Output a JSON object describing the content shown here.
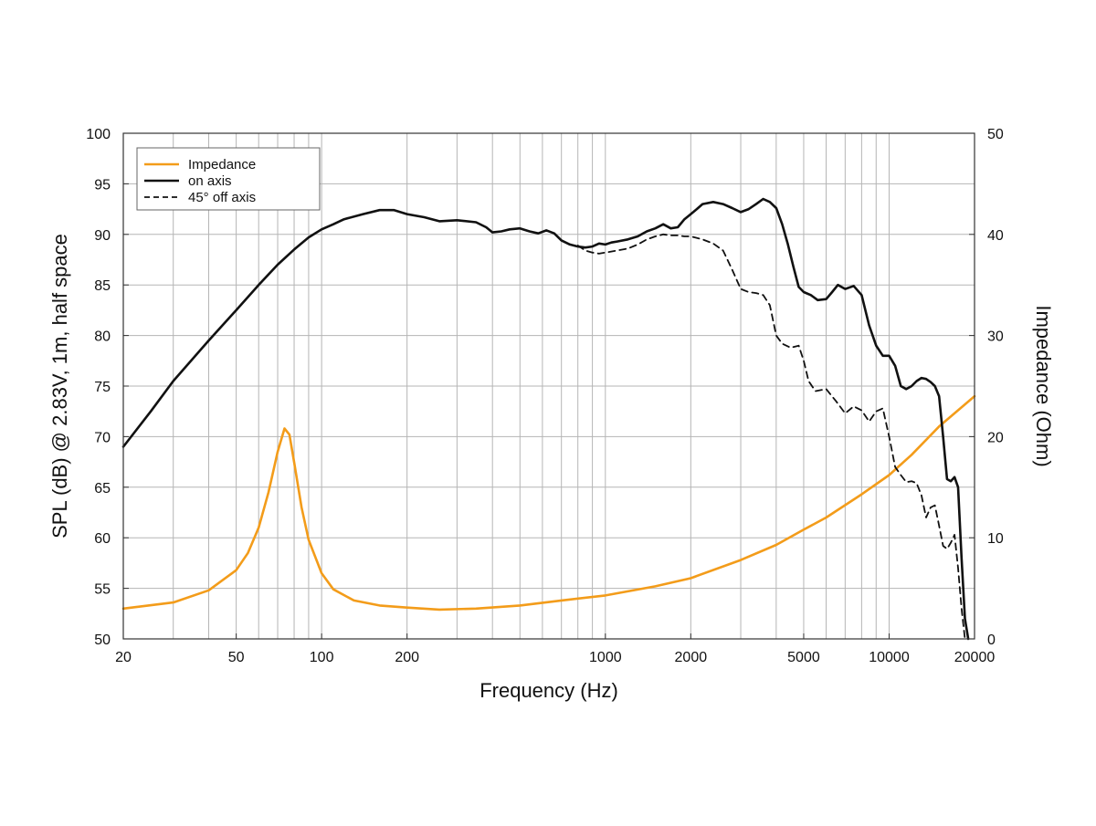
{
  "chart_data": {
    "type": "line",
    "x_scale": "log",
    "xlabel": "Frequency (Hz)",
    "ylabel_left": "SPL (dB) @ 2.83V, 1m, half space",
    "ylabel_right": "Impedance (Ohm)",
    "xlim": [
      20,
      20000
    ],
    "ylim_left": [
      50,
      100
    ],
    "ylim_right": [
      0,
      50
    ],
    "x_ticks": [
      20,
      50,
      100,
      200,
      1000,
      2000,
      5000,
      10000,
      20000
    ],
    "x_tick_labels": [
      "20",
      "50",
      "100",
      "200",
      "1000",
      "2000",
      "5000",
      "10000",
      "20000"
    ],
    "y_left_ticks": [
      50,
      55,
      60,
      65,
      70,
      75,
      80,
      85,
      90,
      95,
      100
    ],
    "y_left_tick_labels": [
      "50",
      "55",
      "60",
      "65",
      "70",
      "75",
      "80",
      "85",
      "90",
      "95",
      "100"
    ],
    "y_right_ticks": [
      0,
      10,
      20,
      30,
      40,
      50
    ],
    "y_right_tick_labels": [
      "0",
      "10",
      "20",
      "30",
      "40",
      "50"
    ],
    "grid": true,
    "legend_position": "top-left",
    "legend": [
      {
        "label": "Impedance",
        "color": "#f39c1a",
        "style": "solid"
      },
      {
        "label": "on axis",
        "color": "#111111",
        "style": "solid"
      },
      {
        "label": "45° off axis",
        "color": "#111111",
        "style": "dashed"
      }
    ],
    "series": [
      {
        "name": "Impedance",
        "axis": "right",
        "color": "#f39c1a",
        "style": "solid",
        "points": [
          [
            20,
            3.0
          ],
          [
            30,
            3.6
          ],
          [
            40,
            4.8
          ],
          [
            50,
            6.8
          ],
          [
            55,
            8.5
          ],
          [
            60,
            11.0
          ],
          [
            65,
            14.5
          ],
          [
            70,
            18.5
          ],
          [
            74,
            20.8
          ],
          [
            77,
            20.2
          ],
          [
            80,
            17.5
          ],
          [
            85,
            13.0
          ],
          [
            90,
            9.8
          ],
          [
            100,
            6.5
          ],
          [
            110,
            4.9
          ],
          [
            130,
            3.8
          ],
          [
            160,
            3.3
          ],
          [
            200,
            3.1
          ],
          [
            260,
            2.9
          ],
          [
            350,
            3.0
          ],
          [
            500,
            3.3
          ],
          [
            700,
            3.8
          ],
          [
            1000,
            4.3
          ],
          [
            1500,
            5.2
          ],
          [
            2000,
            6.0
          ],
          [
            3000,
            7.8
          ],
          [
            4000,
            9.3
          ],
          [
            5000,
            10.8
          ],
          [
            6000,
            12.0
          ],
          [
            8000,
            14.3
          ],
          [
            10000,
            16.2
          ],
          [
            12000,
            18.2
          ],
          [
            15000,
            21.0
          ],
          [
            20000,
            24.0
          ]
        ]
      },
      {
        "name": "on axis",
        "axis": "left",
        "color": "#111111",
        "style": "solid",
        "points": [
          [
            20,
            69.0
          ],
          [
            25,
            72.5
          ],
          [
            30,
            75.5
          ],
          [
            40,
            79.5
          ],
          [
            50,
            82.5
          ],
          [
            60,
            85.0
          ],
          [
            70,
            87.0
          ],
          [
            80,
            88.5
          ],
          [
            90,
            89.7
          ],
          [
            100,
            90.5
          ],
          [
            110,
            91.0
          ],
          [
            120,
            91.5
          ],
          [
            140,
            92.0
          ],
          [
            160,
            92.4
          ],
          [
            180,
            92.4
          ],
          [
            200,
            92.0
          ],
          [
            230,
            91.7
          ],
          [
            260,
            91.3
          ],
          [
            300,
            91.4
          ],
          [
            350,
            91.2
          ],
          [
            380,
            90.7
          ],
          [
            400,
            90.2
          ],
          [
            430,
            90.3
          ],
          [
            460,
            90.5
          ],
          [
            500,
            90.6
          ],
          [
            540,
            90.3
          ],
          [
            580,
            90.1
          ],
          [
            620,
            90.4
          ],
          [
            660,
            90.1
          ],
          [
            700,
            89.4
          ],
          [
            750,
            89.0
          ],
          [
            800,
            88.8
          ],
          [
            850,
            88.7
          ],
          [
            900,
            88.8
          ],
          [
            950,
            89.1
          ],
          [
            1000,
            89.0
          ],
          [
            1050,
            89.2
          ],
          [
            1100,
            89.3
          ],
          [
            1200,
            89.5
          ],
          [
            1300,
            89.8
          ],
          [
            1400,
            90.3
          ],
          [
            1500,
            90.6
          ],
          [
            1600,
            91.0
          ],
          [
            1700,
            90.6
          ],
          [
            1800,
            90.7
          ],
          [
            1900,
            91.5
          ],
          [
            2000,
            92.0
          ],
          [
            2100,
            92.5
          ],
          [
            2200,
            93.0
          ],
          [
            2400,
            93.2
          ],
          [
            2600,
            93.0
          ],
          [
            2800,
            92.6
          ],
          [
            3000,
            92.2
          ],
          [
            3200,
            92.5
          ],
          [
            3400,
            93.0
          ],
          [
            3600,
            93.5
          ],
          [
            3800,
            93.2
          ],
          [
            4000,
            92.6
          ],
          [
            4200,
            91.0
          ],
          [
            4400,
            89.0
          ],
          [
            4600,
            86.8
          ],
          [
            4800,
            84.8
          ],
          [
            5000,
            84.3
          ],
          [
            5300,
            84.0
          ],
          [
            5600,
            83.5
          ],
          [
            6000,
            83.6
          ],
          [
            6300,
            84.3
          ],
          [
            6600,
            85.0
          ],
          [
            7000,
            84.6
          ],
          [
            7500,
            84.9
          ],
          [
            8000,
            84.0
          ],
          [
            8500,
            81.0
          ],
          [
            9000,
            79.0
          ],
          [
            9500,
            78.0
          ],
          [
            10000,
            78.0
          ],
          [
            10500,
            77.0
          ],
          [
            11000,
            75.0
          ],
          [
            11500,
            74.7
          ],
          [
            12000,
            75.0
          ],
          [
            12500,
            75.5
          ],
          [
            13000,
            75.8
          ],
          [
            13500,
            75.7
          ],
          [
            14000,
            75.4
          ],
          [
            14500,
            75.0
          ],
          [
            15000,
            74.0
          ],
          [
            15500,
            70.0
          ],
          [
            16000,
            65.8
          ],
          [
            16500,
            65.6
          ],
          [
            17000,
            66.0
          ],
          [
            17500,
            65.0
          ],
          [
            18000,
            58.0
          ],
          [
            18500,
            52.0
          ],
          [
            19000,
            50.0
          ]
        ]
      },
      {
        "name": "45° off axis",
        "axis": "left",
        "color": "#111111",
        "style": "dashed",
        "points": [
          [
            800,
            88.9
          ],
          [
            850,
            88.4
          ],
          [
            900,
            88.2
          ],
          [
            950,
            88.1
          ],
          [
            1000,
            88.2
          ],
          [
            1100,
            88.4
          ],
          [
            1200,
            88.6
          ],
          [
            1300,
            89.0
          ],
          [
            1400,
            89.5
          ],
          [
            1500,
            89.8
          ],
          [
            1600,
            90.0
          ],
          [
            1700,
            89.9
          ],
          [
            1800,
            89.9
          ],
          [
            1900,
            89.8
          ],
          [
            2000,
            89.8
          ],
          [
            2200,
            89.5
          ],
          [
            2400,
            89.1
          ],
          [
            2600,
            88.4
          ],
          [
            2800,
            86.5
          ],
          [
            3000,
            84.6
          ],
          [
            3200,
            84.3
          ],
          [
            3400,
            84.2
          ],
          [
            3600,
            84.0
          ],
          [
            3800,
            83.0
          ],
          [
            4000,
            80.0
          ],
          [
            4200,
            79.2
          ],
          [
            4500,
            78.8
          ],
          [
            4800,
            79.0
          ],
          [
            5000,
            77.5
          ],
          [
            5200,
            75.5
          ],
          [
            5500,
            74.5
          ],
          [
            6000,
            74.7
          ],
          [
            6500,
            73.5
          ],
          [
            7000,
            72.3
          ],
          [
            7500,
            73.0
          ],
          [
            8000,
            72.6
          ],
          [
            8500,
            71.5
          ],
          [
            9000,
            72.5
          ],
          [
            9500,
            72.8
          ],
          [
            10000,
            70.0
          ],
          [
            10500,
            67.0
          ],
          [
            11000,
            66.2
          ],
          [
            11500,
            65.5
          ],
          [
            12000,
            65.6
          ],
          [
            12500,
            65.4
          ],
          [
            13000,
            64.2
          ],
          [
            13500,
            62.0
          ],
          [
            14000,
            63.0
          ],
          [
            14500,
            63.2
          ],
          [
            15000,
            61.2
          ],
          [
            15500,
            59.2
          ],
          [
            16000,
            58.9
          ],
          [
            16500,
            59.5
          ],
          [
            17000,
            60.3
          ],
          [
            17500,
            57.0
          ],
          [
            18000,
            53.0
          ],
          [
            18500,
            50.0
          ]
        ]
      }
    ]
  }
}
